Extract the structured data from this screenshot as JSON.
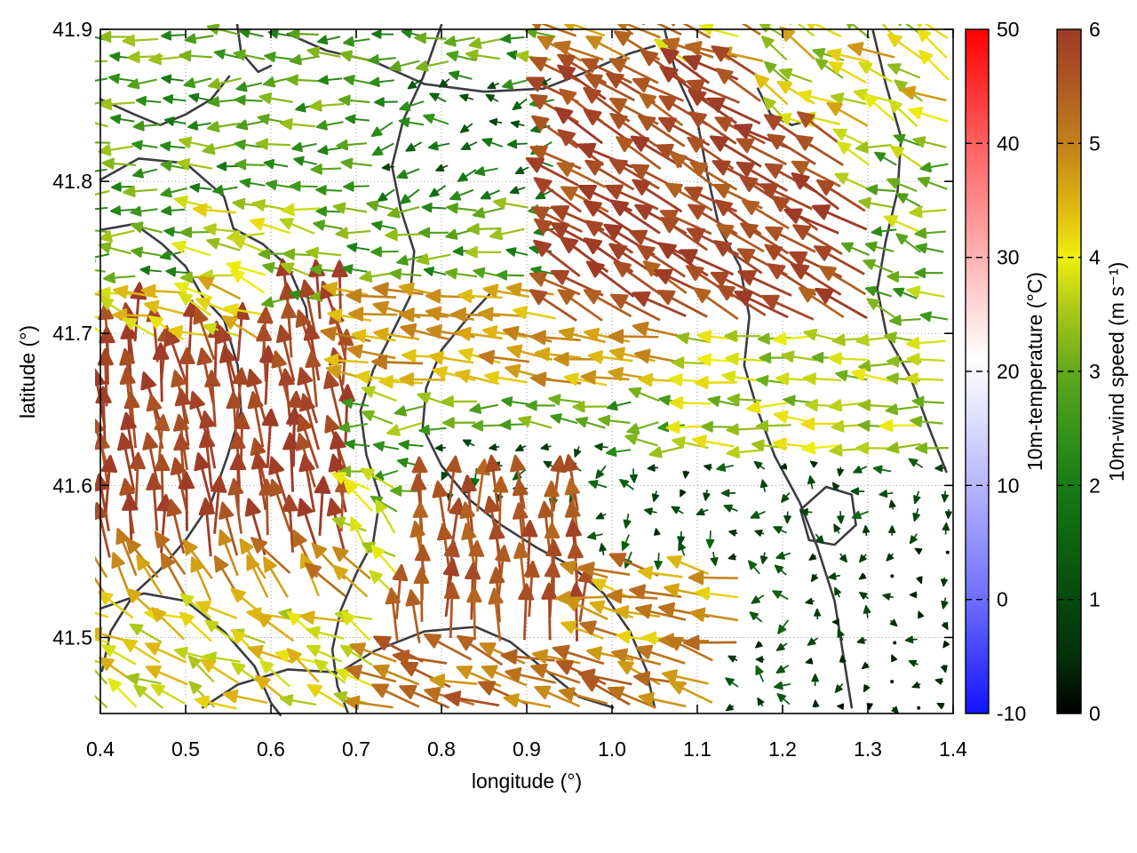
{
  "chart_data": {
    "type": "scatter",
    "subtype": "quiver-vector-field-map",
    "title": "",
    "xlabel": "longitude (°)",
    "ylabel": "latitude (°)",
    "x_range": [
      0.4,
      1.4
    ],
    "y_range": [
      41.45,
      41.9
    ],
    "x_ticks": [
      0.4,
      0.5,
      0.6,
      0.7,
      0.8,
      0.9,
      1.0,
      1.1,
      1.2,
      1.3,
      1.4
    ],
    "x_tick_labels": [
      "0.4",
      "0.5",
      "0.6",
      "0.7",
      "0.8",
      "0.9",
      "1.0",
      "1.1",
      "1.2",
      "1.3",
      "1.4"
    ],
    "y_ticks": [
      41.9,
      41.8,
      41.7,
      41.6,
      41.5
    ],
    "y_tick_labels": [
      "41.9",
      "41.8",
      "41.7",
      "41.6",
      "41.5"
    ],
    "grid": "dotted",
    "legend_position": "none",
    "style": {
      "boundary_color": "#3b3b42",
      "grid_color": "#9a9a9a",
      "axis_color": "#000000",
      "background": "#ffffff"
    },
    "colorbars": [
      {
        "label": "10m-temperature (°C)",
        "range": [
          -10,
          50
        ],
        "ticks": [
          50,
          40,
          30,
          20,
          10,
          0,
          -10
        ],
        "tick_labels": [
          "50",
          "40",
          "30",
          "20",
          "10",
          "0",
          "-10"
        ],
        "stops": [
          [
            -10,
            "#1212ff"
          ],
          [
            0,
            "#6e6eff"
          ],
          [
            10,
            "#b6b6ff"
          ],
          [
            17,
            "#e6e6ff"
          ],
          [
            21,
            "#ffffff"
          ],
          [
            30,
            "#ffb2b2"
          ],
          [
            40,
            "#ff6060"
          ],
          [
            50,
            "#ff0000"
          ]
        ]
      },
      {
        "label": "10m-wind speed (m s⁻¹)",
        "range": [
          0,
          6
        ],
        "ticks": [
          6,
          5,
          4,
          3,
          2,
          1,
          0
        ],
        "tick_labels": [
          "6",
          "5",
          "4",
          "3",
          "2",
          "1",
          "0"
        ],
        "stops": [
          [
            0,
            "#000000"
          ],
          [
            0.5,
            "#03300a"
          ],
          [
            1,
            "#07490d"
          ],
          [
            1.5,
            "#0d6311"
          ],
          [
            2,
            "#187c15"
          ],
          [
            2.5,
            "#37941a"
          ],
          [
            3,
            "#63a81b"
          ],
          [
            3.5,
            "#a6c51a"
          ],
          [
            4,
            "#eeee0e"
          ],
          [
            4.5,
            "#dcb112"
          ],
          [
            5,
            "#c1801b"
          ],
          [
            5.5,
            "#ae5a22"
          ],
          [
            6,
            "#9e3a28"
          ]
        ]
      }
    ],
    "arrow_grid": {
      "cols": 33,
      "rows": 32,
      "length_per_ms": 10.3,
      "length_base": 4
    },
    "wind_field_regions": [
      {
        "name": "nw-yellow-band",
        "lon": [
          0.4,
          0.62
        ],
        "lat": [
          41.695,
          41.73
        ],
        "dir": 162,
        "djit": 18,
        "speed": 4.2,
        "sjit": 0.5
      },
      {
        "name": "west-red-block",
        "lon": [
          0.4,
          0.71
        ],
        "lat": [
          41.55,
          41.715
        ],
        "dir": 97,
        "djit": 13,
        "speed": 5.8,
        "sjit": 0.25
      },
      {
        "name": "west-orange-fringe",
        "lon": [
          0.4,
          0.74
        ],
        "lat": [
          41.515,
          41.55
        ],
        "dir": 126,
        "djit": 16,
        "speed": 4.9,
        "sjit": 0.4
      },
      {
        "name": "sw-yellow",
        "lon": [
          0.4,
          0.74
        ],
        "lat": [
          41.45,
          41.515
        ],
        "dir": 152,
        "djit": 22,
        "speed": 4.0,
        "sjit": 0.6
      },
      {
        "name": "south-transition-green",
        "lon": [
          0.62,
          0.76
        ],
        "lat": [
          41.515,
          41.6
        ],
        "dir": 140,
        "djit": 28,
        "speed": 3.4,
        "sjit": 0.8
      },
      {
        "name": "south-center-red-up",
        "lon": [
          0.74,
          0.98
        ],
        "lat": [
          41.495,
          41.585
        ],
        "dir": 91,
        "djit": 10,
        "speed": 5.6,
        "sjit": 0.3
      },
      {
        "name": "dark-green-pocket",
        "lon": [
          0.8,
          1.02
        ],
        "lat": [
          41.585,
          41.635
        ],
        "dir": 210,
        "djit": 70,
        "speed": 1.2,
        "sjit": 0.6
      },
      {
        "name": "south-band-red-west",
        "lon": [
          0.74,
          1.13
        ],
        "lat": [
          41.45,
          41.495
        ],
        "dir": 161,
        "djit": 14,
        "speed": 5.2,
        "sjit": 0.5
      },
      {
        "name": "south-east-orange",
        "lon": [
          0.95,
          1.15
        ],
        "lat": [
          41.495,
          41.545
        ],
        "dir": 168,
        "djit": 15,
        "speed": 4.8,
        "sjit": 0.6
      },
      {
        "name": "se-far-weak",
        "lon": [
          1.22,
          1.4
        ],
        "lat": [
          41.45,
          41.58
        ],
        "dir": 200,
        "djit": 120,
        "speed": 0.55,
        "sjit": 0.4
      },
      {
        "name": "se-weak",
        "lon": [
          0.98,
          1.4
        ],
        "lat": [
          41.45,
          41.615
        ],
        "dir": 190,
        "djit": 90,
        "speed": 0.95,
        "sjit": 0.6
      },
      {
        "name": "east-yellow-band",
        "lon": [
          1.1,
          1.4
        ],
        "lat": [
          41.615,
          41.705
        ],
        "dir": 178,
        "djit": 12,
        "speed": 3.6,
        "sjit": 0.6
      },
      {
        "name": "ne-corner-mixed",
        "lon": [
          1.2,
          1.4
        ],
        "lat": [
          41.835,
          41.9
        ],
        "dir": 150,
        "djit": 18,
        "speed": 3.9,
        "sjit": 0.9
      },
      {
        "name": "east-edge-green",
        "lon": [
          1.3,
          1.4
        ],
        "lat": [
          41.705,
          41.835
        ],
        "dir": 165,
        "djit": 25,
        "speed": 3.1,
        "sjit": 0.8
      },
      {
        "name": "ne-red",
        "lon": [
          0.94,
          1.33
        ],
        "lat": [
          41.705,
          41.875
        ],
        "dir": 150,
        "djit": 8,
        "speed": 5.7,
        "sjit": 0.35
      },
      {
        "name": "top-center-red-edge",
        "lon": [
          0.94,
          1.2
        ],
        "lat": [
          41.875,
          41.9
        ],
        "dir": 155,
        "djit": 15,
        "speed": 4.6,
        "sjit": 0.9
      },
      {
        "name": "central-orange-band",
        "lon": [
          0.7,
          1.1
        ],
        "lat": [
          41.66,
          41.735
        ],
        "dir": 172,
        "djit": 8,
        "speed": 4.7,
        "sjit": 0.45
      },
      {
        "name": "central-green",
        "lon": [
          0.6,
          1.1
        ],
        "lat": [
          41.6,
          41.66
        ],
        "dir": 178,
        "djit": 20,
        "speed": 2.9,
        "sjit": 0.7
      },
      {
        "name": "top-center-sparse",
        "lon": [
          0.72,
          0.96
        ],
        "lat": [
          41.79,
          41.875
        ],
        "dir": 185,
        "djit": 35,
        "speed": 1.7,
        "sjit": 0.8
      },
      {
        "name": "nw-yellow-patch",
        "lon": [
          0.52,
          0.68
        ],
        "lat": [
          41.73,
          41.79
        ],
        "dir": 172,
        "djit": 15,
        "speed": 3.6,
        "sjit": 0.7
      },
      {
        "name": "nw-green",
        "lon": [
          0.4,
          0.96
        ],
        "lat": [
          41.715,
          41.9
        ],
        "dir": 180,
        "djit": 15,
        "speed": 2.7,
        "sjit": 0.8
      }
    ],
    "default_field": {
      "dir": 180,
      "djit": 20,
      "speed": 2.5,
      "sjit": 0.6
    },
    "boundary_lines": [
      [
        [
          0.62,
          41.897
        ],
        [
          0.665,
          41.886
        ],
        [
          0.72,
          41.879
        ],
        [
          0.78,
          41.864
        ],
        [
          0.85,
          41.859
        ],
        [
          0.92,
          41.861
        ],
        [
          0.97,
          41.872
        ],
        [
          1.02,
          41.884
        ],
        [
          1.05,
          41.889
        ]
      ],
      [
        [
          0.4,
          41.801
        ],
        [
          0.445,
          41.815
        ],
        [
          0.5,
          41.812
        ],
        [
          0.545,
          41.79
        ],
        [
          0.556,
          41.769
        ],
        [
          0.59,
          41.759
        ],
        [
          0.62,
          41.744
        ],
        [
          0.641,
          41.717
        ],
        [
          0.645,
          41.699
        ]
      ],
      [
        [
          0.4,
          41.768
        ],
        [
          0.44,
          41.772
        ],
        [
          0.472,
          41.759
        ],
        [
          0.5,
          41.744
        ],
        [
          0.52,
          41.724
        ],
        [
          0.545,
          41.709
        ],
        [
          0.561,
          41.679
        ],
        [
          0.565,
          41.649
        ],
        [
          0.549,
          41.619
        ],
        [
          0.53,
          41.589
        ],
        [
          0.5,
          41.564
        ],
        [
          0.469,
          41.544
        ],
        [
          0.44,
          41.529
        ],
        [
          0.412,
          41.504
        ],
        [
          0.402,
          41.478
        ]
      ],
      [
        [
          0.8,
          41.903
        ],
        [
          0.778,
          41.868
        ],
        [
          0.755,
          41.84
        ],
        [
          0.742,
          41.81
        ],
        [
          0.752,
          41.782
        ],
        [
          0.768,
          41.754
        ],
        [
          0.763,
          41.724
        ],
        [
          0.742,
          41.7
        ],
        [
          0.72,
          41.676
        ],
        [
          0.705,
          41.649
        ],
        [
          0.712,
          41.62
        ],
        [
          0.728,
          41.592
        ],
        [
          0.72,
          41.563
        ],
        [
          0.7,
          41.542
        ],
        [
          0.682,
          41.518
        ],
        [
          0.672,
          41.492
        ],
        [
          0.678,
          41.468
        ],
        [
          0.69,
          41.451
        ]
      ],
      [
        [
          0.865,
          41.731
        ],
        [
          0.832,
          41.711
        ],
        [
          0.8,
          41.689
        ],
        [
          0.782,
          41.664
        ],
        [
          0.778,
          41.638
        ],
        [
          0.8,
          41.613
        ],
        [
          0.832,
          41.591
        ],
        [
          0.87,
          41.574
        ],
        [
          0.912,
          41.559
        ],
        [
          0.952,
          41.547
        ],
        [
          0.99,
          41.529
        ],
        [
          1.021,
          41.504
        ],
        [
          1.04,
          41.479
        ],
        [
          1.05,
          41.454
        ]
      ],
      [
        [
          1.062,
          41.899
        ],
        [
          1.076,
          41.869
        ],
        [
          1.1,
          41.84
        ],
        [
          1.112,
          41.804
        ],
        [
          1.126,
          41.769
        ],
        [
          1.15,
          41.744
        ],
        [
          1.161,
          41.711
        ],
        [
          1.155,
          41.679
        ],
        [
          1.171,
          41.649
        ],
        [
          1.191,
          41.619
        ],
        [
          1.22,
          41.589
        ],
        [
          1.241,
          41.559
        ],
        [
          1.261,
          41.524
        ],
        [
          1.271,
          41.489
        ],
        [
          1.281,
          41.454
        ]
      ],
      [
        [
          1.306,
          41.899
        ],
        [
          1.321,
          41.864
        ],
        [
          1.339,
          41.829
        ],
        [
          1.335,
          41.794
        ],
        [
          1.321,
          41.761
        ],
        [
          1.311,
          41.729
        ],
        [
          1.322,
          41.699
        ],
        [
          1.35,
          41.671
        ],
        [
          1.371,
          41.639
        ],
        [
          1.392,
          41.609
        ]
      ],
      [
        [
          0.52,
          41.454
        ],
        [
          0.561,
          41.469
        ],
        [
          0.62,
          41.479
        ],
        [
          0.68,
          41.477
        ],
        [
          0.721,
          41.491
        ],
        [
          0.78,
          41.504
        ],
        [
          0.84,
          41.507
        ],
        [
          0.881,
          41.497
        ],
        [
          0.921,
          41.479
        ],
        [
          0.961,
          41.461
        ],
        [
          1.001,
          41.454
        ]
      ],
      [
        [
          0.4,
          41.519
        ],
        [
          0.451,
          41.529
        ],
        [
          0.5,
          41.524
        ],
        [
          0.545,
          41.504
        ],
        [
          0.581,
          41.481
        ],
        [
          0.6,
          41.457
        ],
        [
          0.611,
          41.449
        ]
      ],
      [
        [
          1.221,
          41.584
        ],
        [
          1.251,
          41.599
        ],
        [
          1.281,
          41.594
        ],
        [
          1.286,
          41.574
        ],
        [
          1.261,
          41.561
        ],
        [
          1.231,
          41.564
        ],
        [
          1.221,
          41.584
        ]
      ],
      [
        [
          0.4,
          41.854
        ],
        [
          0.44,
          41.844
        ],
        [
          0.47,
          41.837
        ],
        [
          0.5,
          41.844
        ],
        [
          0.53,
          41.854
        ],
        [
          0.551,
          41.869
        ]
      ],
      [
        [
          1.171,
          41.861
        ],
        [
          1.186,
          41.844
        ],
        [
          1.211,
          41.837
        ],
        [
          1.236,
          41.841
        ]
      ],
      [
        [
          0.56,
          41.905
        ],
        [
          0.565,
          41.885
        ],
        [
          0.585,
          41.872
        ],
        [
          0.6,
          41.876
        ]
      ]
    ]
  }
}
